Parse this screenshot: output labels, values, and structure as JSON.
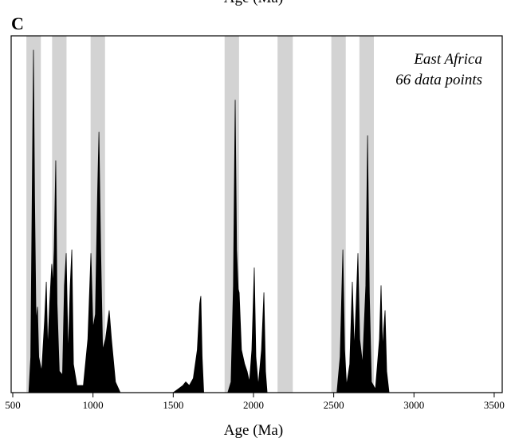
{
  "chart_data": {
    "type": "area",
    "top_label": "Age (Ma)",
    "panel_label": "C",
    "xlabel": "Age (Ma)",
    "annotations": [
      "East Africa",
      "66 data points"
    ],
    "xlim": [
      490,
      3550
    ],
    "ylim": [
      0,
      100
    ],
    "xticks": [
      500,
      1000,
      1500,
      2000,
      2500,
      3000,
      3500
    ],
    "color": "#000000",
    "band_color": "#d3d3d3",
    "bands": [
      [
        585,
        675
      ],
      [
        745,
        835
      ],
      [
        985,
        1075
      ],
      [
        1820,
        1910
      ],
      [
        2150,
        2245
      ],
      [
        2485,
        2575
      ],
      [
        2660,
        2750
      ]
    ],
    "x": [
      500,
      600,
      612,
      622,
      629,
      636,
      645,
      654,
      662,
      680,
      698,
      709,
      718,
      730,
      743,
      750,
      758,
      768,
      776,
      790,
      810,
      822,
      833,
      845,
      858,
      868,
      878,
      900,
      940,
      968,
      987,
      1000,
      1015,
      1028,
      1037,
      1048,
      1060,
      1078,
      1101,
      1115,
      1140,
      1170,
      1500,
      1530,
      1560,
      1578,
      1600,
      1625,
      1650,
      1665,
      1672,
      1680,
      1690,
      1840,
      1860,
      1875,
      1886,
      1895,
      1905,
      1911,
      1925,
      1945,
      1960,
      1975,
      1990,
      2005,
      2015,
      2030,
      2050,
      2065,
      2075,
      2085,
      2520,
      2540,
      2557,
      2568,
      2580,
      2600,
      2616,
      2628,
      2640,
      2651,
      2662,
      2680,
      2700,
      2711,
      2722,
      2735,
      2760,
      2785,
      2795,
      2805,
      2812,
      2820,
      2830,
      2845,
      3500
    ],
    "values": [
      0,
      0,
      10,
      60,
      96,
      55,
      20,
      24,
      10,
      6,
      20,
      31,
      12,
      25,
      36,
      30,
      40,
      65,
      25,
      6,
      5,
      30,
      39,
      10,
      30,
      40,
      8,
      2,
      2,
      15,
      39,
      18,
      22,
      55,
      73,
      40,
      12,
      15,
      23,
      15,
      3,
      0,
      0,
      1,
      2,
      3,
      2,
      4,
      12,
      25,
      27,
      10,
      0,
      0,
      3,
      30,
      82,
      40,
      29,
      28,
      12,
      8,
      6,
      3,
      12,
      35,
      10,
      2,
      12,
      28,
      6,
      0,
      0,
      10,
      40,
      12,
      2,
      8,
      31,
      12,
      25,
      39,
      15,
      8,
      30,
      72,
      28,
      3,
      1,
      15,
      30,
      12,
      18,
      23,
      6,
      0,
      0
    ]
  }
}
